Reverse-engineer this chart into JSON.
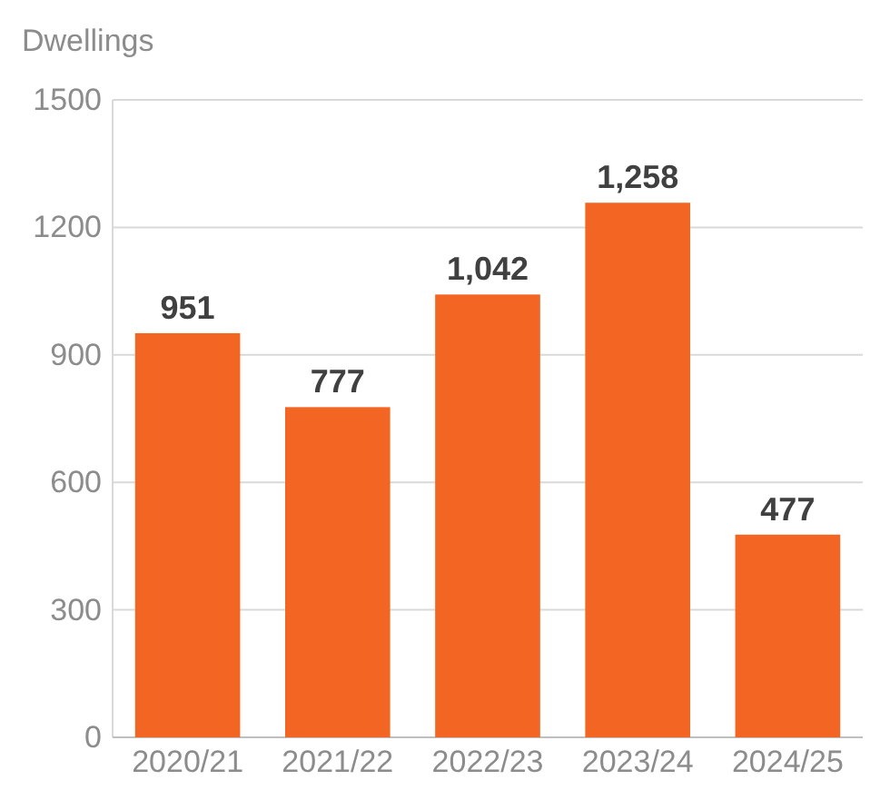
{
  "chart_data": {
    "type": "bar",
    "ylabel": "Dwellings",
    "categories": [
      "2020/21",
      "2021/22",
      "2022/23",
      "2023/24",
      "2024/25"
    ],
    "values": [
      951,
      777,
      1042,
      1258,
      477
    ],
    "value_labels": [
      "951",
      "777",
      "1,042",
      "1,258",
      "477"
    ],
    "color": "#f26522",
    "ylim": [
      0,
      1500
    ],
    "yticks": [
      0,
      300,
      600,
      900,
      1200,
      1500
    ],
    "grid": "y"
  }
}
